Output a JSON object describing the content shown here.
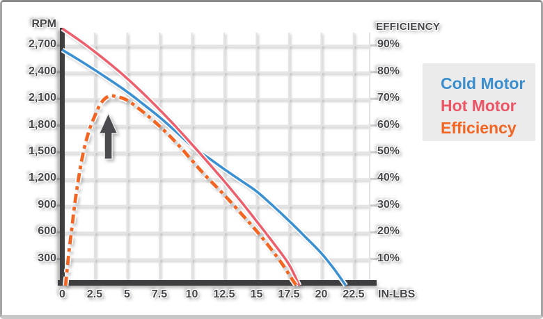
{
  "chart_data": {
    "type": "line",
    "xlabel": "IN-LBS",
    "grid": true,
    "legend_position": "right",
    "x_axis": {
      "tick_values": [
        0,
        2.5,
        5,
        7.5,
        10,
        12.5,
        15,
        17.5,
        20,
        22.5
      ],
      "tick_labels": [
        "0",
        "2.5",
        "5",
        "7.5",
        "10",
        "12.5",
        "15",
        "17.5",
        "20",
        "22.5"
      ],
      "range": [
        0,
        23.7
      ]
    },
    "left_axis": {
      "label": "RPM",
      "tick_values": [
        300,
        600,
        900,
        1200,
        1500,
        1800,
        2100,
        2400,
        2700
      ],
      "tick_labels": [
        "300",
        "600",
        "900",
        "1,200",
        "1,500",
        "1,800",
        "2,100",
        "2,400",
        "2,700"
      ],
      "range": [
        0,
        2900
      ]
    },
    "right_axis": {
      "label": "EFFICIENCY",
      "tick_values": [
        10,
        20,
        30,
        40,
        50,
        60,
        70,
        80,
        90
      ],
      "tick_labels": [
        "10%",
        "20%",
        "30%",
        "40%",
        "50%",
        "60%",
        "70%",
        "80%",
        "90%"
      ],
      "range": [
        0,
        100
      ],
      "grid_equivalence": "300 RPM = 10%"
    },
    "series": [
      {
        "name": "Cold Motor",
        "color": "#3a90d1",
        "axis": "rpm",
        "line_style": "solid",
        "points": [
          [
            0,
            2650
          ],
          [
            1.25,
            2540
          ],
          [
            2.5,
            2425
          ],
          [
            3.75,
            2305
          ],
          [
            5,
            2180
          ],
          [
            6.25,
            2040
          ],
          [
            7.5,
            1895
          ],
          [
            8.75,
            1735
          ],
          [
            10,
            1570
          ],
          [
            11.25,
            1440
          ],
          [
            12.5,
            1310
          ],
          [
            13.75,
            1185
          ],
          [
            15,
            1060
          ],
          [
            16.25,
            900
          ],
          [
            17.5,
            730
          ],
          [
            18.75,
            550
          ],
          [
            20,
            365
          ],
          [
            21,
            185
          ],
          [
            21.9,
            0
          ]
        ]
      },
      {
        "name": "Hot Motor",
        "color": "#ec5f6d",
        "axis": "rpm",
        "line_style": "solid",
        "points": [
          [
            0,
            2890
          ],
          [
            1.25,
            2765
          ],
          [
            2.5,
            2630
          ],
          [
            3.75,
            2485
          ],
          [
            5,
            2330
          ],
          [
            6.25,
            2160
          ],
          [
            7.5,
            1980
          ],
          [
            8.75,
            1790
          ],
          [
            10,
            1590
          ],
          [
            11.25,
            1385
          ],
          [
            12.5,
            1175
          ],
          [
            13.75,
            955
          ],
          [
            15,
            725
          ],
          [
            16.25,
            490
          ],
          [
            17.5,
            240
          ],
          [
            18.3,
            0
          ]
        ]
      },
      {
        "name": "Efficiency",
        "color": "#f26522",
        "axis": "percent",
        "line_style": "dash-dot",
        "points": [
          [
            0.25,
            0
          ],
          [
            0.5,
            12
          ],
          [
            0.75,
            22
          ],
          [
            1,
            32
          ],
          [
            1.5,
            47
          ],
          [
            2,
            57
          ],
          [
            2.5,
            63.5
          ],
          [
            3,
            68.5
          ],
          [
            3.6,
            71
          ],
          [
            4.2,
            70.8
          ],
          [
            5,
            69.5
          ],
          [
            6,
            66
          ],
          [
            7,
            62
          ],
          [
            8,
            57.5
          ],
          [
            9,
            52.5
          ],
          [
            10,
            47
          ],
          [
            11,
            41.5
          ],
          [
            12.5,
            34
          ],
          [
            14,
            26
          ],
          [
            15,
            20.5
          ],
          [
            16,
            14.5
          ],
          [
            17,
            8
          ],
          [
            17.8,
            2
          ],
          [
            18.1,
            0
          ]
        ]
      }
    ],
    "annotation": {
      "shape": "up-arrow",
      "x_in_lbs": 3.5,
      "description": "dark arrow pointing up at the efficiency peak"
    }
  },
  "legend": {
    "background": "#ebebeb",
    "items": [
      {
        "label": "Cold Motor",
        "color": "#3a8ecd"
      },
      {
        "label": "Hot Motor",
        "color": "#ec5565"
      },
      {
        "label": "Efficiency",
        "color": "#f26522"
      }
    ]
  },
  "colors": {
    "axis_bar": "#3e3e41",
    "grid_line": "#e3e3e3",
    "tick_mark": "#cdcdcd",
    "label_text": "#46464a",
    "arrow": "#4a4a4f",
    "background": "#ffffff",
    "frame": "#a6a6a6"
  }
}
